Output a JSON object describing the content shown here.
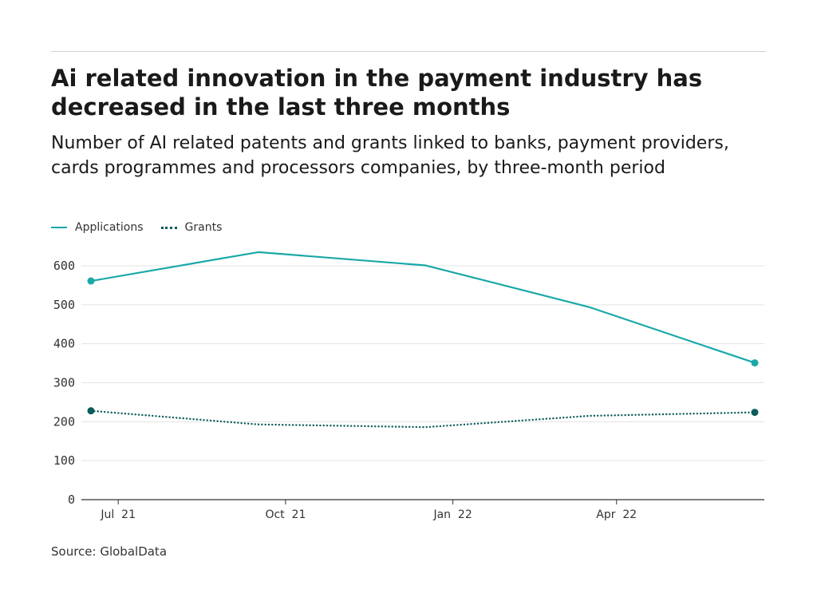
{
  "title": "Ai related innovation in the payment industry has decreased in the last three months",
  "subtitle": "Number of AI related patents and grants linked to banks, payment providers, cards programmes and processors companies, by three-month period",
  "source": "Source: GlobalData",
  "colors": {
    "applications": "#1aa8a8",
    "grants": "#0d5c5c",
    "grid": "#e3e3e3",
    "axis": "#333333"
  },
  "chart_data": {
    "type": "line",
    "x": [
      "2021-06-30",
      "2021-09-30",
      "2021-12-31",
      "2022-03-31",
      "2022-06-30"
    ],
    "series": [
      {
        "name": "Applications",
        "style": "solid",
        "values": [
          561,
          635,
          601,
          494,
          351
        ]
      },
      {
        "name": "Grants",
        "style": "dotted",
        "values": [
          228,
          193,
          186,
          215,
          224
        ]
      }
    ],
    "x_ticks": [
      {
        "date": "2021-07-15",
        "label": "Jul  21"
      },
      {
        "date": "2021-10-15",
        "label": "Oct  21"
      },
      {
        "date": "2022-01-15",
        "label": "Jan  22"
      },
      {
        "date": "2022-04-15",
        "label": "Apr  22"
      }
    ],
    "y_ticks": [
      0,
      100,
      200,
      300,
      400,
      500,
      600
    ],
    "ylim": [
      0,
      600
    ],
    "grid": true,
    "legend_position": "top-left",
    "end_markers": true
  }
}
